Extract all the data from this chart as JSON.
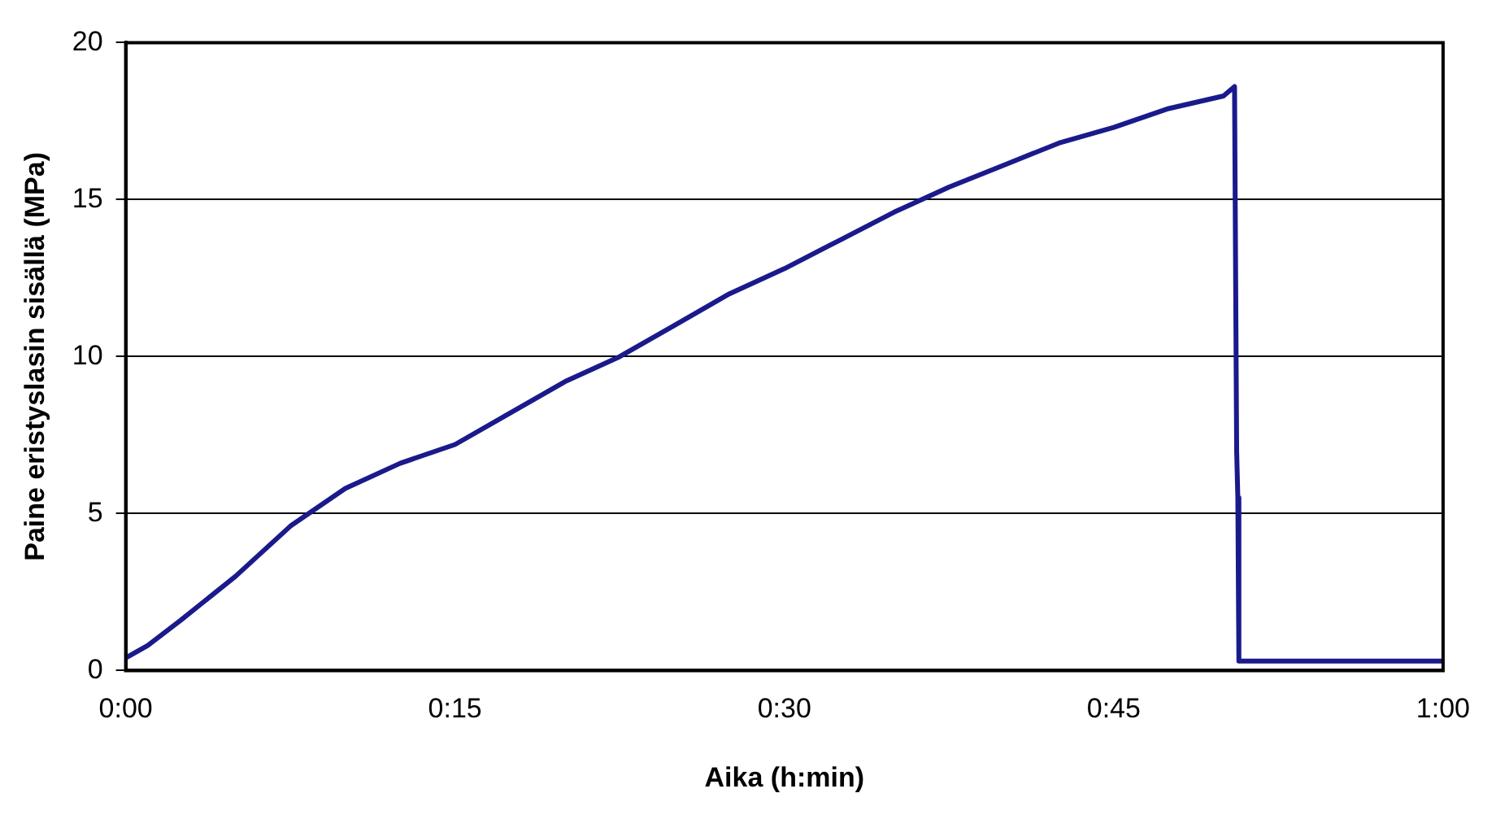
{
  "chart_data": {
    "type": "line",
    "xlabel": "Aika (h:min)",
    "ylabel": "Paine eristyslasin sisällä (MPa)",
    "xlim": [
      0,
      1
    ],
    "xticks": [
      {
        "value": 0,
        "label": "0:00"
      },
      {
        "value": 0.25,
        "label": "0:15"
      },
      {
        "value": 0.5,
        "label": "0:30"
      },
      {
        "value": 0.75,
        "label": "0:45"
      },
      {
        "value": 1,
        "label": "1:00"
      }
    ],
    "ylim": [
      0,
      20
    ],
    "yticks": [
      0,
      5,
      10,
      15,
      20
    ],
    "grid": "y",
    "legend": false,
    "marker": "none",
    "line_style": "solid",
    "series": [
      {
        "color": "#1a1a8c",
        "x": [
          0,
          0.0167,
          0.0417,
          0.0833,
          0.125,
          0.1667,
          0.2083,
          0.25,
          0.2917,
          0.3333,
          0.375,
          0.4167,
          0.4583,
          0.5,
          0.5417,
          0.5833,
          0.625,
          0.6667,
          0.7083,
          0.75,
          0.7917,
          0.8333,
          0.8417,
          0.8433,
          0.8442,
          0.845,
          1
        ],
        "values": [
          0.4,
          0.8,
          1.6,
          3.0,
          4.6,
          5.8,
          6.6,
          7.2,
          8.2,
          9.2,
          10.0,
          11.0,
          12.0,
          12.8,
          13.7,
          14.6,
          15.4,
          16.1,
          16.8,
          17.3,
          17.9,
          18.3,
          18.6,
          7.0,
          5.5,
          0.3,
          0.3
        ]
      }
    ]
  }
}
